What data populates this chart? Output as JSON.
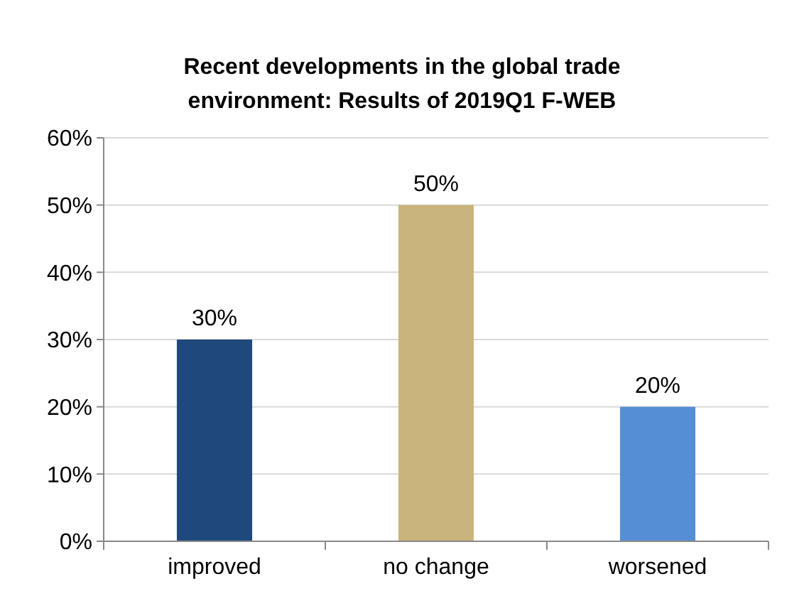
{
  "chart_data": {
    "type": "bar",
    "title": "Recent developments in the global trade environment: Results of 2019Q1 F-WEB",
    "categories": [
      "improved",
      "no change",
      "worsened"
    ],
    "values": [
      30,
      50,
      20
    ],
    "colors": [
      "#1f497d",
      "#c9b47c",
      "#558ed5"
    ],
    "value_labels": [
      "30%",
      "50%",
      "20%"
    ],
    "ylim": [
      0,
      60
    ],
    "yticks": [
      {
        "value": 0,
        "label": "0%"
      },
      {
        "value": 10,
        "label": "10%"
      },
      {
        "value": 20,
        "label": "20%"
      },
      {
        "value": 30,
        "label": "30%"
      },
      {
        "value": 40,
        "label": "40%"
      },
      {
        "value": 50,
        "label": "50%"
      },
      {
        "value": 60,
        "label": "60%"
      }
    ],
    "grid": "y"
  }
}
